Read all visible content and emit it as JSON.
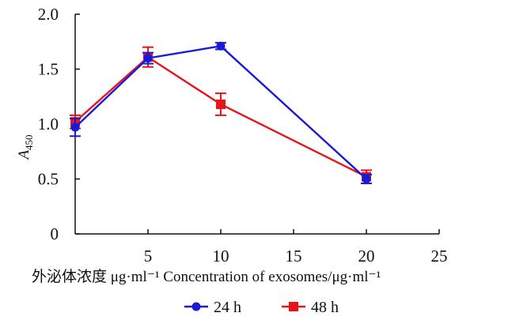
{
  "chart_data": {
    "type": "line",
    "title": "",
    "xlabel": "外泌体浓度 μg·ml⁻¹  Concentration  of  exosomes/μg·ml⁻¹",
    "ylabel_main": "A",
    "ylabel_sub": "450",
    "x_ticks": [
      "5",
      "10",
      "15",
      "20",
      "25"
    ],
    "y_ticks": [
      "0",
      "0.5",
      "1.0",
      "1.5",
      "2.0"
    ],
    "xlim": [
      0,
      25
    ],
    "ylim": [
      0,
      2.0
    ],
    "grid": false,
    "legend_position": "bottom",
    "series": [
      {
        "name": "24 h",
        "color": "#1a1ad6",
        "marker": "circle",
        "x": [
          0,
          5,
          10,
          20
        ],
        "y": [
          0.97,
          1.6,
          1.71,
          0.5
        ],
        "err": [
          0.08,
          0.05,
          0.03,
          0.04
        ]
      },
      {
        "name": "48 h",
        "color": "#e8131b",
        "marker": "square",
        "x": [
          0,
          5,
          10,
          20
        ],
        "y": [
          1.02,
          1.61,
          1.18,
          0.52
        ],
        "err": [
          0.06,
          0.09,
          0.1,
          0.06
        ]
      }
    ]
  }
}
